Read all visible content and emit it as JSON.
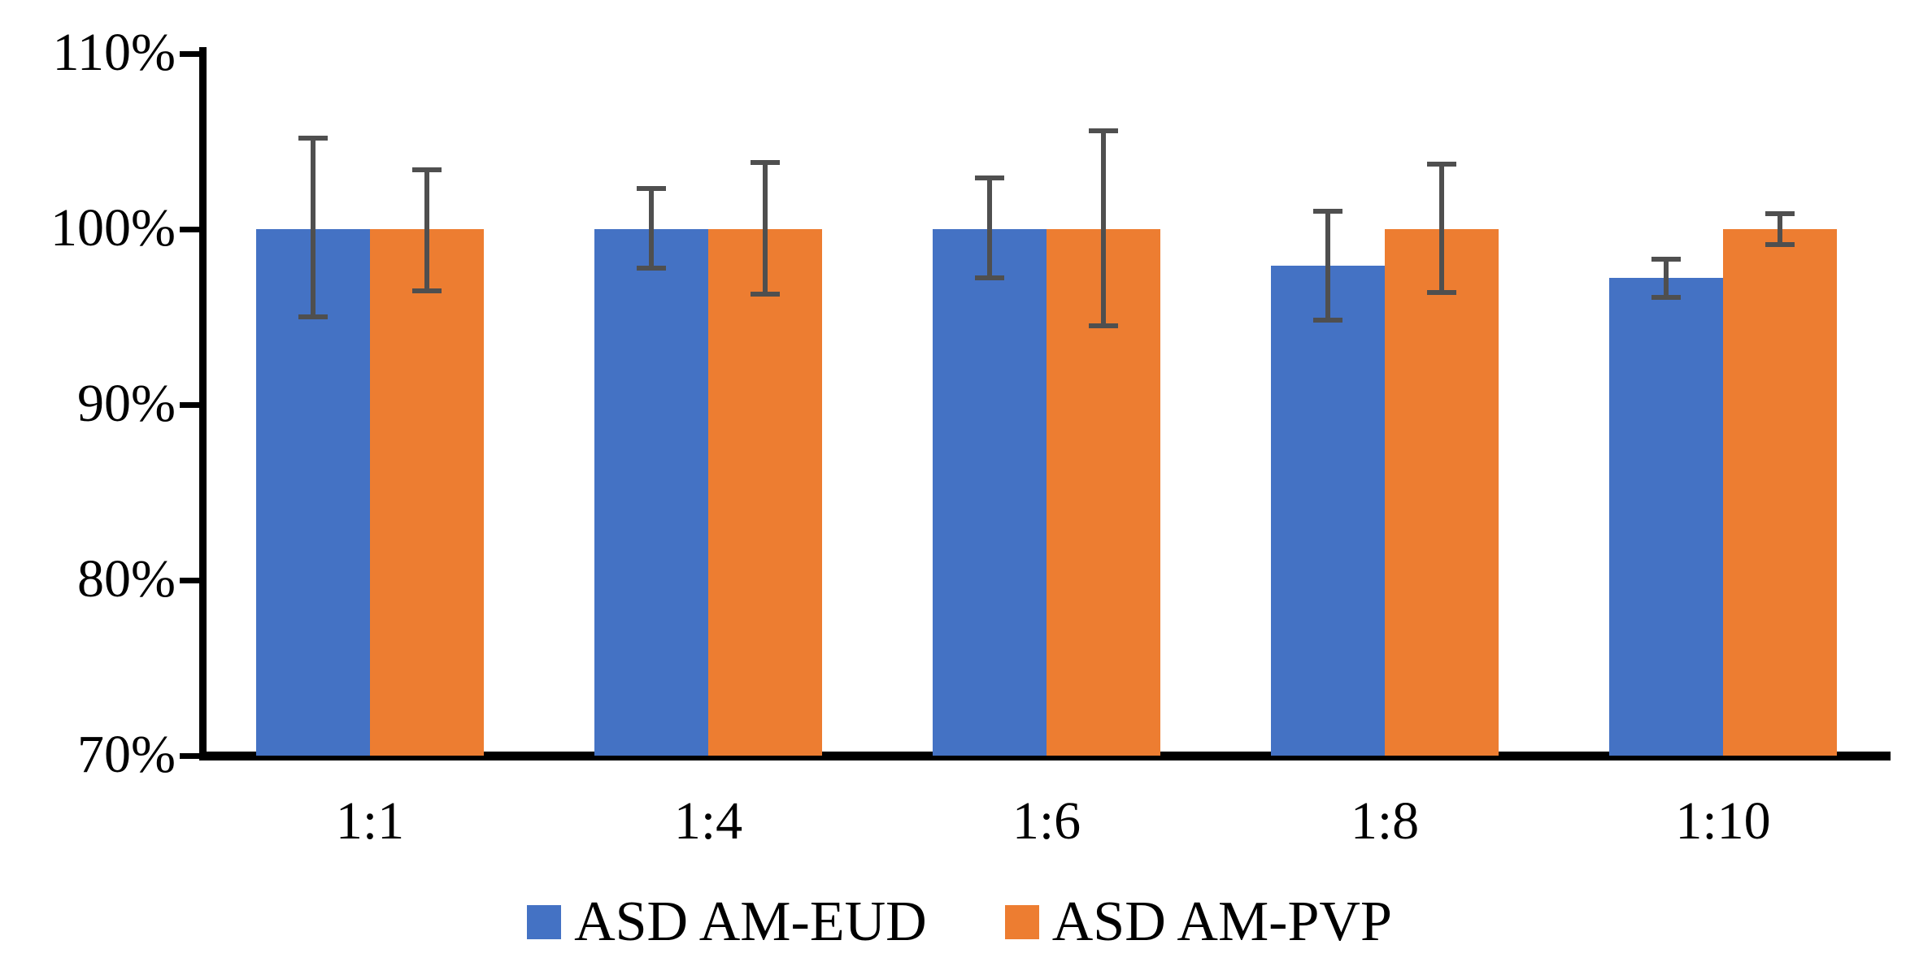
{
  "figure": {
    "background": "#ffffff",
    "axis_color": "#000000",
    "error_bar_color": "#4f4f4f"
  },
  "chart_data": {
    "type": "bar",
    "title": "",
    "xlabel": "",
    "ylabel": "",
    "grid": false,
    "legend_position": "bottom",
    "categories": [
      "1:1",
      "1:4",
      "1:6",
      "1:8",
      "1:10"
    ],
    "series": [
      {
        "name": "ASD AM-EUD",
        "color": "#4472C4",
        "values": [
          100,
          100,
          100,
          97.9,
          97.2
        ],
        "error_low": [
          95.0,
          97.8,
          97.2,
          94.8,
          96.1
        ],
        "error_high": [
          105.2,
          102.3,
          102.9,
          101.0,
          98.3
        ]
      },
      {
        "name": "ASD AM-PVP",
        "color": "#ED7D31",
        "values": [
          100,
          100,
          100,
          100,
          100
        ],
        "error_low": [
          96.5,
          96.3,
          94.5,
          96.4,
          99.1
        ],
        "error_high": [
          103.4,
          103.8,
          105.6,
          103.7,
          100.9
        ]
      }
    ],
    "ylim": [
      70,
      110
    ],
    "yticks": [
      {
        "value": 70,
        "label": "70%"
      },
      {
        "value": 80,
        "label": "80%"
      },
      {
        "value": 90,
        "label": "90%"
      },
      {
        "value": 100,
        "label": "100%"
      },
      {
        "value": 110,
        "label": "110%"
      }
    ]
  }
}
